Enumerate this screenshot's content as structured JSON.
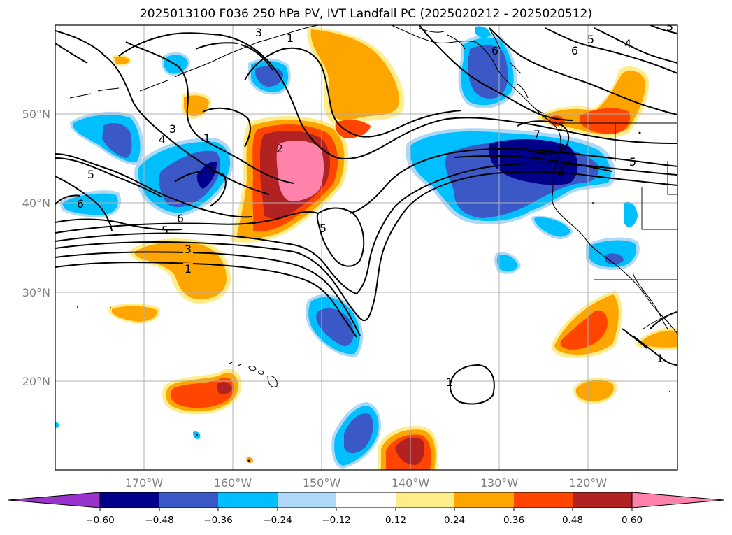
{
  "title": "2025013100 F036 250 hPa PV, IVT Landfall PC (2025020212 - 2025020512)",
  "lat_labels": [
    "50°N",
    "40°N",
    "30°N",
    "20°N"
  ],
  "lon_labels": [
    "170°W",
    "160°W",
    "150°W",
    "140°W",
    "130°W",
    "120°W"
  ],
  "colorbar": {
    "ticks": [
      "−0.60",
      "−0.48",
      "−0.36",
      "−0.24",
      "−0.12",
      "0.12",
      "0.24",
      "0.36",
      "0.48",
      "0.60"
    ],
    "colors": [
      "#9932cc",
      "#00008b",
      "#3a59c7",
      "#00bfff",
      "#add8f7",
      "#ffffff",
      "#ffec8b",
      "#ffa500",
      "#ff4500",
      "#b22222",
      "#ff82ab"
    ]
  },
  "contour_labels": [
    "1",
    "3",
    "4",
    "3",
    "1",
    "5",
    "6",
    "6",
    "5",
    "3",
    "1",
    "2",
    "5",
    "5",
    "6",
    "4",
    "5",
    "7",
    "2",
    "1",
    "1",
    "5",
    "6"
  ],
  "map": {
    "lat_range": [
      10,
      60
    ],
    "lon_range": [
      -180,
      -110
    ],
    "field": "250 hPa PV contours with IVT landfall PC shading"
  }
}
